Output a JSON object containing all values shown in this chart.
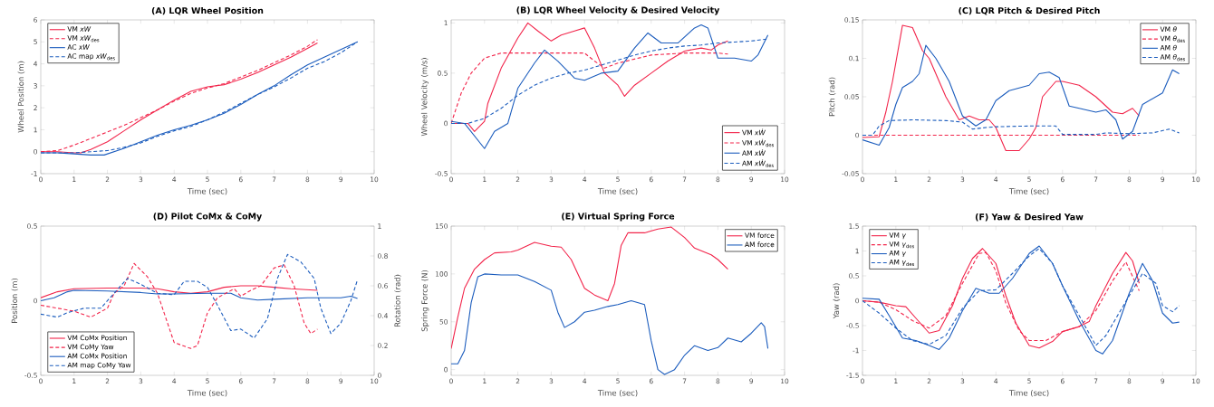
{
  "chart_data": [
    {
      "type": "line",
      "title": "(A) LQR Wheel Position",
      "xlabel": "Time (sec)",
      "ylabel": "Wheel Position (m)",
      "xlim": [
        0,
        10
      ],
      "xticks": [
        0,
        1,
        2,
        3,
        4,
        5,
        6,
        7,
        8,
        9,
        10
      ],
      "ylim": [
        -1,
        6
      ],
      "yticks": [
        -1,
        0,
        1,
        2,
        3,
        4,
        5,
        6
      ],
      "legend": "top left",
      "grid": false,
      "series": [
        {
          "name": "VM *xW*",
          "color": "#f2244a",
          "line_style": "solid",
          "x": [
            0,
            0.5,
            1,
            1.2,
            1.5,
            2,
            2.5,
            3,
            3.5,
            4,
            4.5,
            5,
            5.5,
            6,
            6.5,
            7,
            7.5,
            8,
            8.3
          ],
          "values": [
            0,
            0,
            -0.05,
            -0.05,
            0.1,
            0.45,
            0.95,
            1.45,
            1.9,
            2.35,
            2.75,
            2.95,
            3.05,
            3.3,
            3.6,
            3.95,
            4.3,
            4.7,
            4.95
          ]
        },
        {
          "name": "VM *xW*$_{des}$",
          "color": "#f2244a",
          "line_style": "dashed",
          "x": [
            0,
            0.5,
            1,
            1.5,
            2,
            2.5,
            3,
            3.5,
            4,
            4.5,
            5,
            5.5,
            6,
            6.5,
            7,
            7.5,
            8,
            8.3
          ],
          "values": [
            0,
            0.05,
            0.3,
            0.6,
            0.9,
            1.2,
            1.55,
            1.9,
            2.3,
            2.65,
            2.9,
            3.1,
            3.4,
            3.7,
            4.05,
            4.4,
            4.8,
            5.1
          ]
        },
        {
          "name": "AC *xW*",
          "color": "#1b5cbd",
          "line_style": "solid",
          "x": [
            0,
            0.5,
            1,
            1.5,
            1.9,
            2.5,
            3,
            3.5,
            4,
            4.5,
            5,
            5.5,
            6,
            6.5,
            7,
            7.5,
            8,
            8.5,
            9,
            9.5
          ],
          "values": [
            -0.05,
            -0.05,
            -0.1,
            -0.15,
            -0.15,
            0.15,
            0.45,
            0.75,
            1.0,
            1.2,
            1.45,
            1.75,
            2.15,
            2.6,
            3.0,
            3.5,
            3.95,
            4.3,
            4.65,
            5.0
          ]
        },
        {
          "name": "AC map *xW*$_{des}$",
          "color": "#1b5cbd",
          "line_style": "dashed",
          "x": [
            0,
            1,
            1.5,
            2,
            2.5,
            3,
            3.5,
            4,
            4.5,
            5,
            5.5,
            6,
            6.5,
            7,
            7.5,
            8,
            8.5,
            9,
            9.5
          ],
          "values": [
            -0.05,
            -0.05,
            0,
            0.05,
            0.2,
            0.4,
            0.7,
            0.95,
            1.15,
            1.45,
            1.8,
            2.2,
            2.6,
            2.95,
            3.35,
            3.8,
            4.1,
            4.5,
            5.0
          ]
        }
      ]
    },
    {
      "type": "line",
      "title": "(B) LQR Wheel Velocity & Desired Velocity",
      "xlabel": "Time (sec)",
      "ylabel": "Wheel Velocity (m/s)",
      "xlim": [
        0,
        10
      ],
      "xticks": [
        0,
        1,
        2,
        3,
        4,
        5,
        6,
        7,
        8,
        9,
        10
      ],
      "ylim": [
        -0.5,
        1.03
      ],
      "yticks": [
        -0.5,
        0,
        0.5,
        1
      ],
      "legend": "bottom right",
      "grid": false,
      "series": [
        {
          "name": "VM *xẆ*",
          "color": "#f2244a",
          "line_style": "solid",
          "x": [
            0,
            0.5,
            0.7,
            1,
            1.1,
            1.5,
            2,
            2.3,
            2.6,
            3,
            3.3,
            3.7,
            4,
            4.3,
            4.6,
            5,
            5.2,
            5.5,
            6,
            6.5,
            7,
            7.5,
            7.8,
            8,
            8.3
          ],
          "values": [
            0,
            0,
            -0.08,
            0.02,
            0.2,
            0.55,
            0.85,
            1.0,
            0.92,
            0.82,
            0.88,
            0.92,
            0.95,
            0.75,
            0.5,
            0.38,
            0.27,
            0.38,
            0.5,
            0.62,
            0.72,
            0.75,
            0.73,
            0.78,
            0.82
          ]
        },
        {
          "name": "VM *xẆ*$_{des}$",
          "color": "#f2244a",
          "line_style": "dashed",
          "x": [
            0,
            0.3,
            0.6,
            1,
            1.5,
            2,
            3,
            4,
            4.3,
            4.6,
            5,
            6,
            7,
            8,
            8.3
          ],
          "values": [
            0,
            0.3,
            0.5,
            0.65,
            0.7,
            0.7,
            0.7,
            0.7,
            0.62,
            0.55,
            0.6,
            0.68,
            0.7,
            0.7,
            0.69
          ]
        },
        {
          "name": "AM *xẆ*",
          "color": "#1b5cbd",
          "line_style": "solid",
          "x": [
            0,
            0.4,
            1,
            1.3,
            1.7,
            2,
            2.5,
            2.8,
            3.2,
            3.7,
            4,
            4.5,
            5,
            5.5,
            5.9,
            6.3,
            6.8,
            7.3,
            7.5,
            7.7,
            8,
            8.5,
            9,
            9.2,
            9.5
          ],
          "values": [
            0.02,
            0,
            -0.25,
            -0.08,
            0,
            0.35,
            0.6,
            0.73,
            0.62,
            0.45,
            0.43,
            0.5,
            0.52,
            0.75,
            0.9,
            0.8,
            0.8,
            0.95,
            0.98,
            0.95,
            0.65,
            0.65,
            0.62,
            0.68,
            0.88
          ]
        },
        {
          "name": "AM *xẆ*$_{des}$",
          "color": "#1b5cbd",
          "line_style": "dashed",
          "x": [
            0,
            0.5,
            1,
            1.5,
            2,
            2.5,
            3,
            3.5,
            4,
            4.5,
            5,
            5.5,
            6,
            6.5,
            7,
            7.5,
            8,
            8.5,
            9,
            9.5
          ],
          "values": [
            0,
            0,
            0.05,
            0.15,
            0.28,
            0.38,
            0.45,
            0.5,
            0.53,
            0.58,
            0.63,
            0.68,
            0.72,
            0.75,
            0.77,
            0.78,
            0.8,
            0.81,
            0.82,
            0.84
          ]
        }
      ]
    },
    {
      "type": "line",
      "title": "(C) LQR Pitch & Desired Pitch",
      "xlabel": "Time (sec)",
      "ylabel": "Pitch (rad)",
      "xlim": [
        0,
        10
      ],
      "xticks": [
        0,
        1,
        2,
        3,
        4,
        5,
        6,
        7,
        8,
        9,
        10
      ],
      "ylim": [
        -0.05,
        0.15
      ],
      "yticks": [
        -0.05,
        0,
        0.05,
        0.1,
        0.15
      ],
      "legend": "top right",
      "grid": false,
      "series": [
        {
          "name": "VM *θ*",
          "color": "#f2244a",
          "line_style": "solid",
          "x": [
            0,
            0.5,
            0.7,
            0.9,
            1.2,
            1.5,
            1.8,
            2,
            2.5,
            2.9,
            3.2,
            3.5,
            3.8,
            4,
            4.3,
            4.7,
            5,
            5.2,
            5.4,
            5.8,
            6,
            6.5,
            7,
            7.5,
            7.8,
            8.1,
            8.3
          ],
          "values": [
            -0.003,
            -0.002,
            0.03,
            0.07,
            0.143,
            0.14,
            0.11,
            0.1,
            0.05,
            0.02,
            0.025,
            0.02,
            0.02,
            0.01,
            -0.02,
            -0.02,
            -0.005,
            0.01,
            0.05,
            0.07,
            0.07,
            0.065,
            0.05,
            0.03,
            0.028,
            0.035,
            0.025
          ]
        },
        {
          "name": "VM *θ*$_{des}$",
          "color": "#f2244a",
          "line_style": "dashed",
          "x": [
            0,
            8.3
          ],
          "values": [
            0,
            0
          ]
        },
        {
          "name": "AM *θ*",
          "color": "#1b5cbd",
          "line_style": "solid",
          "x": [
            0,
            0.5,
            0.8,
            1,
            1.2,
            1.5,
            1.7,
            1.9,
            2.2,
            2.6,
            3,
            3.4,
            3.7,
            4,
            4.4,
            5,
            5.3,
            5.6,
            5.9,
            6.2,
            6.5,
            7,
            7.3,
            7.6,
            7.8,
            8.1,
            8.4,
            8.8,
            9,
            9.3,
            9.5
          ],
          "values": [
            -0.006,
            -0.013,
            0.01,
            0.04,
            0.062,
            0.07,
            0.08,
            0.117,
            0.1,
            0.07,
            0.025,
            0.012,
            0.02,
            0.045,
            0.058,
            0.065,
            0.08,
            0.082,
            0.075,
            0.038,
            0.035,
            0.03,
            0.033,
            0.02,
            -0.005,
            0.005,
            0.04,
            0.05,
            0.055,
            0.085,
            0.08
          ]
        },
        {
          "name": "AM *θ*$_{des}$",
          "color": "#1b5cbd",
          "line_style": "dashed",
          "x": [
            0,
            0.3,
            0.5,
            0.8,
            1.5,
            2.5,
            3,
            3.3,
            3.7,
            4,
            5,
            5.8,
            6,
            7,
            7.3,
            8,
            8.7,
            9.2,
            9.5
          ],
          "values": [
            0,
            0,
            0.012,
            0.019,
            0.02,
            0.019,
            0.017,
            0.008,
            0.01,
            0.011,
            0.012,
            0.012,
            0.001,
            0.001,
            0.003,
            0.002,
            0.003,
            0.008,
            0.003
          ]
        }
      ]
    },
    {
      "type": "line",
      "title": "(D) Pilot CoMx & CoMy",
      "xlabel": "Time (sec)",
      "ylabel": "Position (m)",
      "y2label": "Rotation (rad)",
      "xlim": [
        0,
        10
      ],
      "xticks": [
        0,
        1,
        2,
        3,
        4,
        5,
        6,
        7,
        8,
        9,
        10
      ],
      "ylim": [
        -0.5,
        0.5
      ],
      "yticks": [
        -0.5,
        0,
        0.5
      ],
      "y2lim": [
        0,
        1
      ],
      "y2ticks": [
        0,
        0.2,
        0.4,
        0.6,
        0.8,
        1
      ],
      "legend": "bottom left",
      "grid": false,
      "series": [
        {
          "name": "VM CoMx Position",
          "color": "#f2244a",
          "line_style": "solid",
          "x": [
            0,
            0.5,
            1,
            2,
            3,
            3.5,
            4,
            4.5,
            5,
            5.5,
            6,
            6.5,
            7,
            7.5,
            8.3
          ],
          "values": [
            0.02,
            0.06,
            0.08,
            0.085,
            0.085,
            0.08,
            0.06,
            0.05,
            0.06,
            0.09,
            0.1,
            0.1,
            0.09,
            0.08,
            0.07
          ]
        },
        {
          "name": "VM CoMy Yaw",
          "color": "#f2244a",
          "line_style": "dashed",
          "axis": "y2",
          "x": [
            0,
            0.5,
            1,
            1.5,
            2,
            2.2,
            2.5,
            2.8,
            3.2,
            3.5,
            4,
            4.5,
            4.7,
            5,
            5.3,
            5.8,
            6,
            6.3,
            6.6,
            7,
            7.3,
            7.6,
            7.9,
            8.1,
            8.3
          ],
          "values": [
            0.47,
            0.45,
            0.43,
            0.39,
            0.45,
            0.55,
            0.6,
            0.75,
            0.66,
            0.55,
            0.22,
            0.18,
            0.2,
            0.42,
            0.52,
            0.58,
            0.53,
            0.57,
            0.6,
            0.72,
            0.74,
            0.6,
            0.35,
            0.28,
            0.31
          ]
        },
        {
          "name": "AM CoMx Position",
          "color": "#1b5cbd",
          "line_style": "solid",
          "x": [
            0,
            0.4,
            0.8,
            1,
            2,
            3,
            3.5,
            4,
            5,
            5.7,
            6,
            6.5,
            7,
            8,
            9,
            9.3,
            9.5
          ],
          "values": [
            0.0,
            0.02,
            0.06,
            0.07,
            0.065,
            0.055,
            0.045,
            0.045,
            0.05,
            0.05,
            0.02,
            0.005,
            0.01,
            0.02,
            0.02,
            0.03,
            0.015
          ]
        },
        {
          "name": "AM map CoMy Yaw",
          "color": "#1b5cbd",
          "line_style": "dashed",
          "axis": "y2",
          "x": [
            0,
            0.5,
            0.8,
            1.3,
            1.8,
            2.2,
            2.6,
            3,
            3.5,
            4,
            4.3,
            4.7,
            5,
            5.3,
            5.7,
            6,
            6.4,
            6.8,
            7.1,
            7.4,
            7.8,
            8.2,
            8.4,
            8.7,
            9,
            9.3,
            9.5
          ],
          "values": [
            0.41,
            0.39,
            0.42,
            0.45,
            0.45,
            0.55,
            0.65,
            0.61,
            0.55,
            0.54,
            0.63,
            0.63,
            0.59,
            0.47,
            0.3,
            0.31,
            0.25,
            0.38,
            0.65,
            0.81,
            0.76,
            0.65,
            0.45,
            0.28,
            0.35,
            0.5,
            0.64
          ]
        }
      ]
    },
    {
      "type": "line",
      "title": "(E) Virtual Spring Force",
      "xlabel": "Time (sec)",
      "ylabel": "Spring Force (N)",
      "xlim": [
        0,
        10
      ],
      "xticks": [
        0,
        1,
        2,
        3,
        4,
        5,
        6,
        7,
        8,
        9,
        10
      ],
      "ylim": [
        -6,
        150
      ],
      "yticks": [
        0,
        50,
        100,
        150
      ],
      "legend": "top right",
      "grid": false,
      "series": [
        {
          "name": "VM force",
          "color": "#f2244a",
          "line_style": "solid",
          "x": [
            0,
            0.2,
            0.4,
            0.7,
            1,
            1.3,
            1.8,
            2,
            2.5,
            3,
            3.3,
            3.6,
            4,
            4.3,
            4.7,
            4.9,
            5.1,
            5.3,
            5.8,
            6.2,
            6.6,
            7,
            7.3,
            7.8,
            8,
            8.3
          ],
          "values": [
            22,
            55,
            85,
            105,
            115,
            122,
            123,
            125,
            133,
            129,
            128,
            115,
            85,
            78,
            72,
            90,
            130,
            143,
            143,
            147,
            149,
            138,
            127,
            120,
            115,
            105
          ]
        },
        {
          "name": "AM force",
          "color": "#1b5cbd",
          "line_style": "solid",
          "x": [
            0,
            0.2,
            0.4,
            0.6,
            0.8,
            1,
            1.5,
            2,
            2.5,
            3,
            3.2,
            3.4,
            3.7,
            4,
            4.3,
            4.7,
            5,
            5.4,
            5.8,
            6,
            6.2,
            6.4,
            6.7,
            7,
            7.3,
            7.7,
            8,
            8.3,
            8.7,
            9,
            9.3,
            9.4,
            9.5
          ],
          "values": [
            6,
            6,
            20,
            70,
            97,
            100,
            99,
            99,
            92,
            83,
            60,
            44,
            50,
            60,
            62,
            66,
            68,
            72,
            68,
            30,
            0,
            -5,
            0,
            15,
            25,
            20,
            23,
            33,
            29,
            38,
            49,
            45,
            22
          ]
        }
      ]
    },
    {
      "type": "line",
      "title": "(F) Yaw & Desired Yaw",
      "xlabel": "Time (sec)",
      "ylabel": "Yaw (rad)",
      "xlim": [
        0,
        10
      ],
      "xticks": [
        0,
        1,
        2,
        3,
        4,
        5,
        6,
        7,
        8,
        9,
        10
      ],
      "ylim": [
        -1.5,
        1.5
      ],
      "yticks": [
        -1.5,
        -1,
        -0.5,
        0,
        0.5,
        1,
        1.5
      ],
      "legend": "top left",
      "grid": false,
      "series": [
        {
          "name": "VM *γ*",
          "color": "#f2244a",
          "line_style": "solid",
          "x": [
            0,
            0.5,
            1,
            1.3,
            1.6,
            2,
            2.3,
            2.7,
            3,
            3.3,
            3.6,
            4,
            4.3,
            4.6,
            5,
            5.3,
            5.7,
            6,
            6.5,
            6.8,
            7,
            7.5,
            7.9,
            8.1,
            8.3
          ],
          "values": [
            0,
            -0.03,
            -0.1,
            -0.12,
            -0.35,
            -0.65,
            -0.6,
            -0.1,
            0.45,
            0.85,
            1.05,
            0.75,
            0.1,
            -0.45,
            -0.9,
            -0.95,
            -0.82,
            -0.62,
            -0.52,
            -0.42,
            -0.1,
            0.55,
            0.97,
            0.8,
            0.35
          ]
        },
        {
          "name": "VM *γ*$_{des}$",
          "color": "#f2244a",
          "line_style": "dashed",
          "x": [
            0,
            0.5,
            1,
            1.5,
            2,
            2.5,
            3,
            3.5,
            3.7,
            4,
            4.3,
            4.7,
            5,
            5.5,
            6,
            6.5,
            7,
            7.5,
            7.9,
            8.3
          ],
          "values": [
            0,
            -0.03,
            -0.18,
            -0.4,
            -0.55,
            -0.3,
            0.35,
            0.95,
            0.97,
            0.6,
            -0.05,
            -0.6,
            -0.8,
            -0.8,
            -0.62,
            -0.52,
            -0.2,
            0.4,
            0.78,
            0.2
          ]
        },
        {
          "name": "AM *γ*",
          "color": "#1b5cbd",
          "line_style": "solid",
          "x": [
            0,
            0.5,
            0.8,
            1.2,
            1.6,
            2,
            2.3,
            2.6,
            3,
            3.4,
            3.8,
            4.1,
            4.5,
            5,
            5.3,
            5.7,
            6,
            6.5,
            7,
            7.2,
            7.5,
            8,
            8.4,
            8.7,
            9,
            9.3,
            9.5
          ],
          "values": [
            0.05,
            0.03,
            -0.3,
            -0.75,
            -0.8,
            -0.9,
            -0.98,
            -0.75,
            -0.2,
            0.25,
            0.15,
            0.15,
            0.45,
            0.95,
            1.1,
            0.75,
            0.3,
            -0.4,
            -1.0,
            -1.07,
            -0.8,
            0.15,
            0.75,
            0.4,
            -0.25,
            -0.45,
            -0.43
          ]
        },
        {
          "name": "AM *γ*$_{des}$",
          "color": "#1b5cbd",
          "line_style": "dashed",
          "x": [
            0,
            0.5,
            1,
            1.5,
            2,
            2.5,
            3,
            3.5,
            4,
            4.5,
            5,
            5.3,
            5.7,
            6,
            6.5,
            7,
            7.3,
            8,
            8.4,
            8.8,
            9,
            9.3,
            9.5
          ],
          "values": [
            0,
            -0.25,
            -0.55,
            -0.8,
            -0.88,
            -0.7,
            -0.15,
            0.2,
            0.22,
            0.55,
            0.9,
            1.05,
            0.75,
            0.3,
            -0.3,
            -0.9,
            -0.7,
            0.1,
            0.55,
            0.35,
            -0.1,
            -0.22,
            -0.1
          ]
        }
      ]
    }
  ]
}
